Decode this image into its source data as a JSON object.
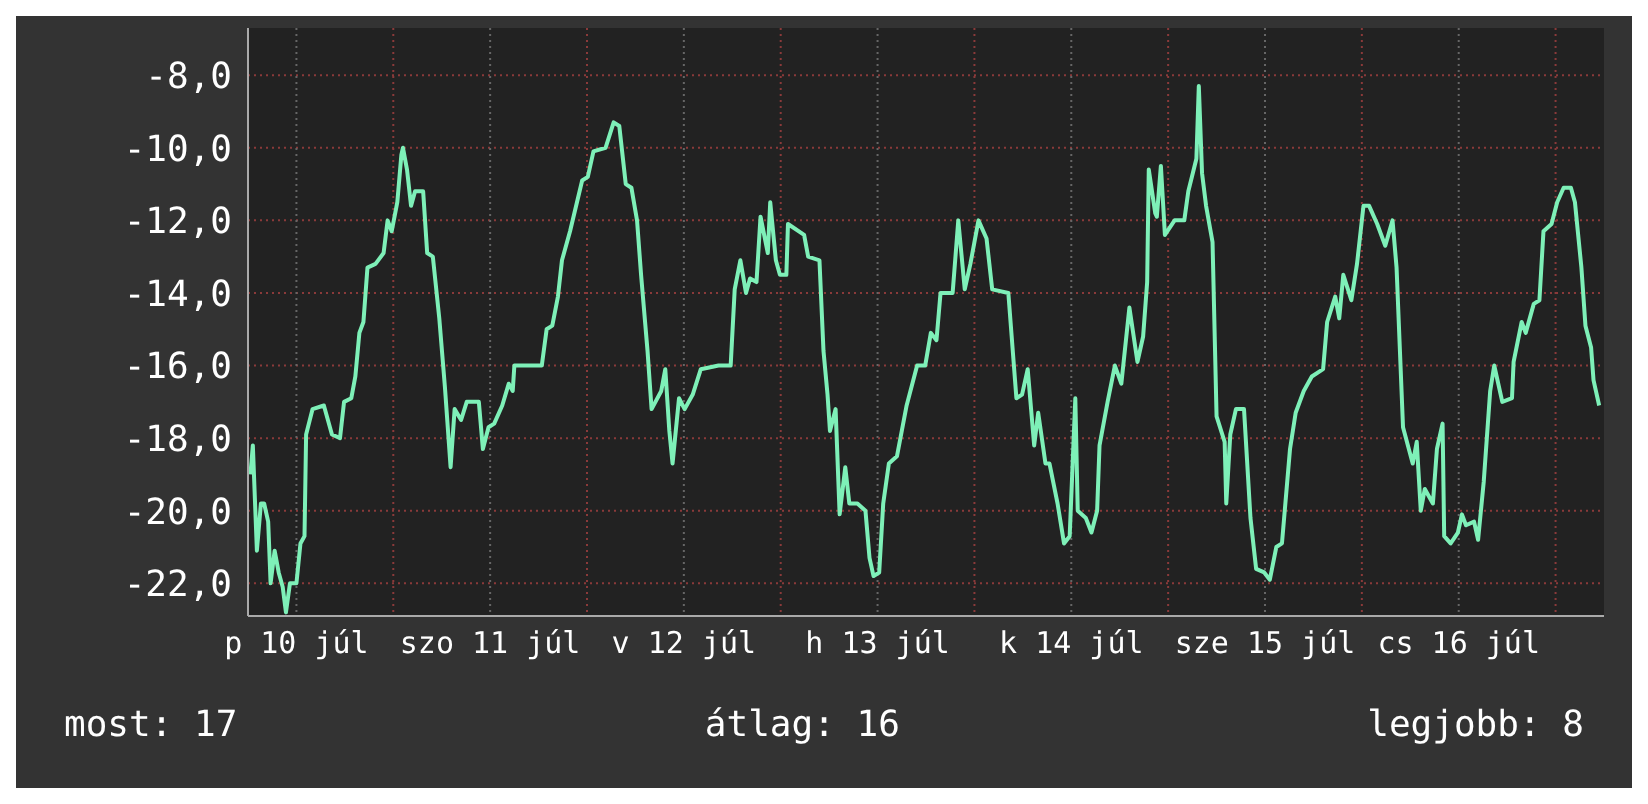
{
  "chart_data": {
    "type": "line",
    "xlim": [
      "--07-10T06:00",
      "--07-17T06:00"
    ],
    "ylim": [
      -22.9,
      -6.7
    ],
    "xticks": [
      {
        "value": "--07-10T12:00",
        "label": "p 10 júl"
      },
      {
        "value": "--07-11T00:00",
        "label": null
      },
      {
        "value": "--07-11T12:00",
        "label": "szo 11 júl"
      },
      {
        "value": "--07-12T00:00",
        "label": null
      },
      {
        "value": "--07-12T12:00",
        "label": "v 12 júl"
      },
      {
        "value": "--07-13T00:00",
        "label": null
      },
      {
        "value": "--07-13T12:00",
        "label": "h 13 júl"
      },
      {
        "value": "--07-14T00:00",
        "label": null
      },
      {
        "value": "--07-14T12:00",
        "label": "k 14 júl"
      },
      {
        "value": "--07-15T00:00",
        "label": null
      },
      {
        "value": "--07-15T12:00",
        "label": "sze 15 júl"
      },
      {
        "value": "--07-16T00:00",
        "label": null
      },
      {
        "value": "--07-16T12:00",
        "label": "cs 16 júl"
      },
      {
        "value": "--07-17T00:00",
        "label": null
      }
    ],
    "yticks": [
      {
        "value": -8,
        "label": "-8,0"
      },
      {
        "value": -10,
        "label": "-10,0"
      },
      {
        "value": -12,
        "label": "-12,0"
      },
      {
        "value": -14,
        "label": "-14,0"
      },
      {
        "value": -16,
        "label": "-16,0"
      },
      {
        "value": -18,
        "label": "-18,0"
      },
      {
        "value": -20,
        "label": "-20,0"
      },
      {
        "value": -22,
        "label": "-22,0"
      }
    ],
    "grid": true,
    "marker": "none",
    "line_style": "solid",
    "annotations": [
      "most: 17",
      "átlag: 16",
      "legjobb: 8"
    ],
    "x": [
      "--07-10T06:18",
      "--07-10T06:36",
      "--07-10T07:06",
      "--07-10T07:36",
      "--07-10T08:00",
      "--07-10T08:30",
      "--07-10T08:48",
      "--07-10T09:18",
      "--07-10T09:48",
      "--07-10T10:18",
      "--07-10T10:42",
      "--07-10T11:12",
      "--07-10T12:00",
      "--07-10T12:30",
      "--07-10T13:00",
      "--07-10T13:12",
      "--07-10T14:00",
      "--07-10T15:24",
      "--07-10T16:24",
      "--07-10T17:24",
      "--07-10T17:54",
      "--07-10T18:48",
      "--07-10T19:18",
      "--07-10T19:48",
      "--07-10T20:18",
      "--07-10T20:48",
      "--07-10T21:48",
      "--07-10T22:48",
      "--07-10T23:18",
      "--07-10T23:48",
      "--07-11T00:30",
      "--07-11T01:00",
      "--07-11T01:12",
      "--07-11T01:42",
      "--07-11T02:12",
      "--07-11T02:42",
      "--07-11T03:42",
      "--07-11T04:12",
      "--07-11T04:54",
      "--07-11T05:42",
      "--07-11T06:24",
      "--07-11T07:06",
      "--07-11T07:36",
      "--07-11T08:24",
      "--07-11T09:06",
      "--07-11T10:36",
      "--07-11T11:06",
      "--07-11T11:48",
      "--07-11T12:30",
      "--07-11T13:30",
      "--07-11T14:18",
      "--07-11T14:48",
      "--07-11T15:00",
      "--07-11T18:24",
      "--07-11T19:00",
      "--07-11T19:42",
      "--07-11T20:24",
      "--07-11T20:54",
      "--07-11T21:54",
      "--07-11T23:24",
      "--07-12T00:06",
      "--07-12T00:48",
      "--07-12T02:18",
      "--07-12T03:18",
      "--07-12T04:00",
      "--07-12T04:48",
      "--07-12T05:30",
      "--07-12T06:12",
      "--07-12T06:42",
      "--07-12T07:30",
      "--07-12T08:00",
      "--07-12T09:12",
      "--07-12T09:42",
      "--07-12T10:12",
      "--07-12T10:36",
      "--07-12T11:24",
      "--07-12T12:06",
      "--07-12T13:06",
      "--07-12T14:06",
      "--07-12T16:18",
      "--07-12T17:48",
      "--07-12T18:18",
      "--07-12T19:00",
      "--07-12T19:42",
      "--07-12T20:12",
      "--07-12T21:00",
      "--07-12T21:30",
      "--07-12T22:24",
      "--07-12T22:42",
      "--07-12T23:24",
      "--07-12T23:54",
      "--07-13T00:42",
      "--07-13T00:54",
      "--07-13T02:54",
      "--07-13T03:24",
      "--07-13T04:48",
      "--07-13T05:18",
      "--07-13T05:48",
      "--07-13T06:06",
      "--07-13T06:48",
      "--07-13T07:18",
      "--07-13T08:00",
      "--07-13T08:30",
      "--07-13T09:30",
      "--07-13T10:30",
      "--07-13T11:00",
      "--07-13T11:30",
      "--07-13T12:12",
      "--07-13T12:42",
      "--07-13T13:24",
      "--07-13T14:24",
      "--07-13T15:36",
      "--07-13T16:54",
      "--07-13T17:54",
      "--07-13T18:36",
      "--07-13T19:18",
      "--07-13T19:48",
      "--07-13T21:18",
      "--07-13T22:00",
      "--07-13T22:48",
      "--07-13T23:30",
      "--07-14T00:30",
      "--07-14T01:30",
      "--07-14T02:12",
      "--07-14T04:12",
      "--07-14T05:12",
      "--07-14T05:54",
      "--07-14T06:36",
      "--07-14T07:24",
      "--07-14T07:54",
      "--07-14T08:48",
      "--07-14T09:18",
      "--07-14T10:18",
      "--07-14T11:06",
      "--07-14T11:48",
      "--07-14T12:30",
      "--07-14T12:48",
      "--07-14T13:48",
      "--07-14T14:30",
      "--07-14T15:12",
      "--07-14T15:30",
      "--07-14T16:30",
      "--07-14T17:24",
      "--07-14T18:12",
      "--07-14T19:12",
      "--07-14T20:12",
      "--07-14T20:54",
      "--07-14T21:24",
      "--07-14T21:36",
      "--07-14T22:24",
      "--07-14T22:36",
      "--07-14T23:06",
      "--07-14T23:36",
      "--07-15T00:48",
      "--07-15T02:00",
      "--07-15T02:30",
      "--07-15T03:30",
      "--07-15T03:48",
      "--07-15T04:12",
      "--07-15T04:42",
      "--07-15T05:30",
      "--07-15T06:00",
      "--07-15T07:00",
      "--07-15T07:12",
      "--07-15T07:42",
      "--07-15T08:24",
      "--07-15T09:24",
      "--07-15T10:12",
      "--07-15T10:54",
      "--07-15T11:54",
      "--07-15T12:36",
      "--07-15T13:24",
      "--07-15T14:06",
      "--07-15T15:06",
      "--07-15T15:48",
      "--07-15T16:48",
      "--07-15T17:48",
      "--07-15T19:12",
      "--07-15T19:42",
      "--07-15T20:42",
      "--07-15T21:12",
      "--07-15T21:42",
      "--07-15T22:42",
      "--07-15T23:24",
      "--07-16T00:12",
      "--07-16T00:54",
      "--07-16T01:54",
      "--07-16T02:54",
      "--07-16T03:48",
      "--07-16T04:18",
      "--07-16T05:06",
      "--07-16T06:18",
      "--07-16T06:48",
      "--07-16T07:18",
      "--07-16T07:48",
      "--07-16T08:48",
      "--07-16T09:18",
      "--07-16T10:00",
      "--07-16T10:12",
      "--07-16T11:00",
      "--07-16T11:54",
      "--07-16T12:24",
      "--07-16T12:54",
      "--07-16T13:54",
      "--07-16T14:24",
      "--07-16T15:06",
      "--07-16T15:54",
      "--07-16T16:24",
      "--07-16T17:24",
      "--07-16T18:36",
      "--07-16T18:48",
      "--07-16T19:48",
      "--07-16T20:18",
      "--07-16T21:18",
      "--07-16T22:00",
      "--07-16T22:30",
      "--07-16T23:30",
      "--07-17T00:12",
      "--07-17T01:00",
      "--07-17T01:54",
      "--07-17T02:24",
      "--07-17T03:12",
      "--07-17T03:42",
      "--07-17T04:24",
      "--07-17T04:42",
      "--07-17T05:24"
    ],
    "series": [
      {
        "color": "#7ef0b8",
        "values": [
          -19.0,
          -18.2,
          -21.1,
          -19.8,
          -19.8,
          -20.3,
          -22.0,
          -21.1,
          -21.7,
          -22.1,
          -22.8,
          -22.0,
          -22.0,
          -20.9,
          -20.7,
          -17.9,
          -17.2,
          -17.1,
          -17.9,
          -18.0,
          -17.0,
          -16.9,
          -16.3,
          -15.1,
          -14.8,
          -13.3,
          -13.2,
          -12.9,
          -12.0,
          -12.3,
          -11.5,
          -10.2,
          -10.0,
          -10.6,
          -11.6,
          -11.2,
          -11.2,
          -12.9,
          -13.0,
          -14.7,
          -16.6,
          -18.8,
          -17.2,
          -17.5,
          -17.0,
          -17.0,
          -18.3,
          -17.7,
          -17.6,
          -17.1,
          -16.5,
          -16.7,
          -16.0,
          -16.0,
          -15.0,
          -14.9,
          -14.1,
          -13.1,
          -12.3,
          -10.9,
          -10.8,
          -10.1,
          -10.0,
          -9.3,
          -9.4,
          -11.0,
          -11.1,
          -12.0,
          -13.5,
          -15.6,
          -17.2,
          -16.7,
          -16.1,
          -17.8,
          -18.7,
          -16.9,
          -17.2,
          -16.8,
          -16.1,
          -16.0,
          -16.0,
          -13.9,
          -13.1,
          -14.0,
          -13.6,
          -13.7,
          -11.9,
          -12.9,
          -11.5,
          -13.1,
          -13.5,
          -13.5,
          -12.1,
          -12.4,
          -13.0,
          -13.1,
          -15.6,
          -16.8,
          -17.8,
          -17.2,
          -20.1,
          -18.8,
          -19.8,
          -19.8,
          -20.0,
          -21.3,
          -21.8,
          -21.7,
          -19.8,
          -18.7,
          -18.5,
          -17.1,
          -16.0,
          -16.0,
          -15.1,
          -15.3,
          -14.0,
          -14.0,
          -12.0,
          -13.9,
          -13.2,
          -12.0,
          -12.5,
          -13.9,
          -14.0,
          -16.9,
          -16.8,
          -16.1,
          -18.2,
          -17.3,
          -18.7,
          -18.7,
          -19.8,
          -20.9,
          -20.7,
          -16.9,
          -20.0,
          -20.2,
          -20.6,
          -20.0,
          -18.2,
          -17.0,
          -16.0,
          -16.5,
          -14.4,
          -15.9,
          -15.2,
          -13.7,
          -10.6,
          -11.8,
          -11.9,
          -10.5,
          -12.4,
          -12.0,
          -12.0,
          -11.2,
          -10.3,
          -8.3,
          -10.7,
          -11.6,
          -12.6,
          -17.4,
          -18.1,
          -19.8,
          -17.9,
          -17.2,
          -17.2,
          -20.2,
          -21.6,
          -21.7,
          -21.9,
          -21.0,
          -20.9,
          -18.3,
          -17.3,
          -16.7,
          -16.3,
          -16.1,
          -14.8,
          -14.1,
          -14.7,
          -13.5,
          -14.2,
          -13.2,
          -11.6,
          -11.6,
          -12.1,
          -12.7,
          -12.0,
          -13.3,
          -17.7,
          -18.7,
          -18.1,
          -20.0,
          -19.4,
          -19.8,
          -18.3,
          -17.6,
          -20.7,
          -20.9,
          -20.6,
          -20.1,
          -20.4,
          -20.3,
          -20.8,
          -19.2,
          -16.7,
          -16.0,
          -17.0,
          -16.9,
          -15.9,
          -14.8,
          -15.1,
          -14.3,
          -14.2,
          -12.3,
          -12.1,
          -11.5,
          -11.1,
          -11.1,
          -11.5,
          -13.3,
          -14.9,
          -15.5,
          -16.4,
          -17.1
        ]
      }
    ]
  }
}
